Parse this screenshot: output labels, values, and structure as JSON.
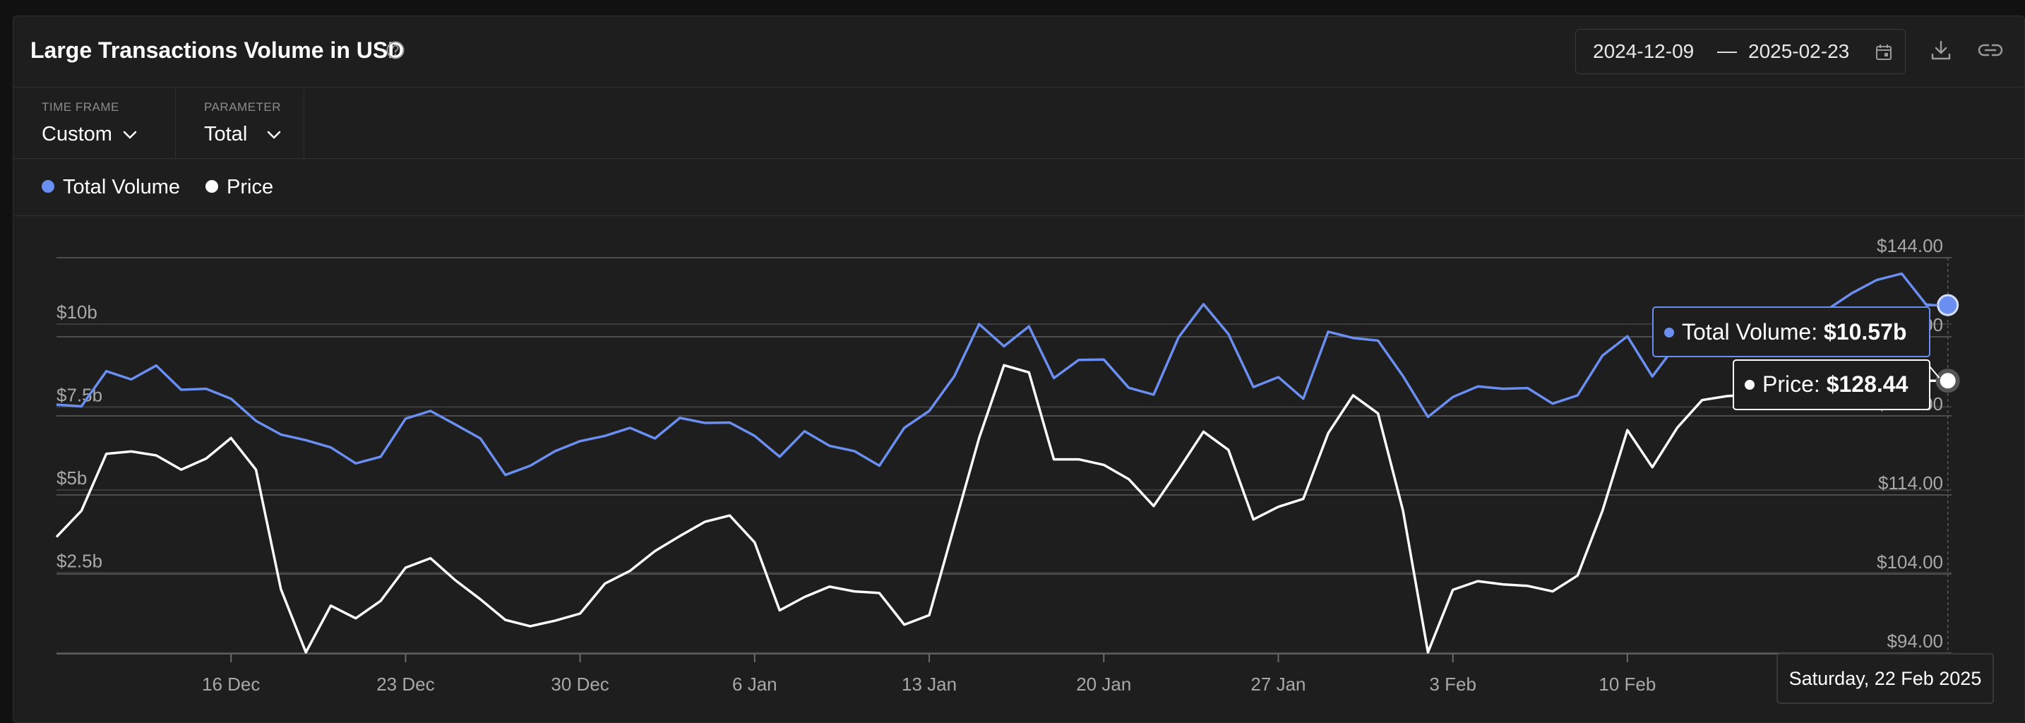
{
  "header": {
    "title": "Large Transactions Volume in USD"
  },
  "date_range": {
    "start": "2024-12-09",
    "separator": "—",
    "end": "2025-02-23"
  },
  "controls": [
    {
      "label": "TIME FRAME",
      "value": "Custom"
    },
    {
      "label": "PARAMETER",
      "value": "Total"
    }
  ],
  "colors": {
    "volume": "#6b8ff0",
    "price": "#ffffff",
    "background": "#1e1e1e",
    "grid": "#4a4a4a"
  },
  "icons": [
    "help-circle-icon",
    "calendar-icon",
    "download-icon",
    "link-icon",
    "chevron-down-icon"
  ],
  "tooltip": {
    "volume_label": "Total Volume: ",
    "volume_value": "$10.57b",
    "price_label": "Price: ",
    "price_value": "$128.44",
    "date": "Saturday, 22 Feb 2025"
  },
  "chart_data": {
    "type": "line",
    "x_start": "2024-12-09",
    "x_end": "2025-02-23",
    "x": [
      "2024-12-09",
      "2024-12-10",
      "2024-12-11",
      "2024-12-12",
      "2024-12-13",
      "2024-12-14",
      "2024-12-15",
      "2024-12-16",
      "2024-12-17",
      "2024-12-18",
      "2024-12-19",
      "2024-12-20",
      "2024-12-21",
      "2024-12-22",
      "2024-12-23",
      "2024-12-24",
      "2024-12-25",
      "2024-12-26",
      "2024-12-27",
      "2024-12-28",
      "2024-12-29",
      "2024-12-30",
      "2024-12-31",
      "2025-01-01",
      "2025-01-02",
      "2025-01-03",
      "2025-01-04",
      "2025-01-05",
      "2025-01-06",
      "2025-01-07",
      "2025-01-08",
      "2025-01-09",
      "2025-01-10",
      "2025-01-11",
      "2025-01-12",
      "2025-01-13",
      "2025-01-14",
      "2025-01-15",
      "2025-01-16",
      "2025-01-17",
      "2025-01-18",
      "2025-01-19",
      "2025-01-20",
      "2025-01-21",
      "2025-01-22",
      "2025-01-23",
      "2025-01-24",
      "2025-01-25",
      "2025-01-26",
      "2025-01-27",
      "2025-01-28",
      "2025-01-29",
      "2025-01-30",
      "2025-01-31",
      "2025-02-01",
      "2025-02-02",
      "2025-02-03",
      "2025-02-04",
      "2025-02-05",
      "2025-02-06",
      "2025-02-07",
      "2025-02-08",
      "2025-02-09",
      "2025-02-10",
      "2025-02-11",
      "2025-02-12",
      "2025-02-13",
      "2025-02-14",
      "2025-02-15",
      "2025-02-16",
      "2025-02-17",
      "2025-02-18",
      "2025-02-19",
      "2025-02-20",
      "2025-02-21",
      "2025-02-22",
      "2025-02-23"
    ],
    "x_ticks": [
      {
        "date": "2024-12-16",
        "label": "16 Dec"
      },
      {
        "date": "2024-12-23",
        "label": "23 Dec"
      },
      {
        "date": "2024-12-30",
        "label": "30 Dec"
      },
      {
        "date": "2025-01-06",
        "label": "6 Jan"
      },
      {
        "date": "2025-01-13",
        "label": "13 Jan"
      },
      {
        "date": "2025-01-20",
        "label": "20 Jan"
      },
      {
        "date": "2025-01-27",
        "label": "27 Jan"
      },
      {
        "date": "2025-02-03",
        "label": "3 Feb"
      },
      {
        "date": "2025-02-10",
        "label": "10 Feb"
      }
    ],
    "y_left": {
      "ticks": [
        2.5,
        5,
        7.5,
        10
      ],
      "labels": [
        "$2.5b",
        "$5b",
        "$7.5b",
        "$10b"
      ],
      "range": [
        0.08,
        12.0
      ]
    },
    "y_right": {
      "ticks": [
        94,
        104,
        114,
        124,
        134,
        144
      ],
      "labels": [
        "$94.00",
        "$104.00",
        "$114.00",
        "$124.00",
        "$134.00",
        "$144.00"
      ],
      "range": [
        94,
        144
      ]
    },
    "series": [
      {
        "name": "Total Volume",
        "axis": "left",
        "values": [
          7.57,
          7.52,
          8.58,
          8.33,
          8.75,
          8.02,
          8.05,
          7.75,
          7.08,
          6.67,
          6.5,
          6.28,
          5.8,
          6.0,
          7.15,
          7.38,
          6.97,
          6.55,
          5.45,
          5.73,
          6.17,
          6.47,
          6.63,
          6.87,
          6.55,
          7.17,
          7.02,
          7.03,
          6.63,
          6.0,
          6.77,
          6.33,
          6.17,
          5.73,
          6.87,
          7.38,
          8.42,
          10.0,
          9.33,
          9.93,
          8.37,
          8.92,
          8.93,
          8.08,
          7.87,
          9.6,
          10.6,
          9.7,
          8.1,
          8.4,
          7.75,
          9.77,
          9.58,
          9.5,
          8.43,
          7.2,
          7.8,
          8.12,
          8.05,
          8.07,
          7.6,
          7.85,
          9.05,
          9.63,
          8.42,
          9.42,
          9.7,
          9.6,
          9.75,
          10.2,
          10.0,
          10.43,
          10.93,
          11.33,
          11.52,
          10.57,
          10.57
        ]
      },
      {
        "name": "Price",
        "axis": "right",
        "values": [
          108.7,
          112.0,
          119.2,
          119.5,
          119.0,
          117.2,
          118.6,
          121.2,
          117.2,
          102.1,
          94.1,
          100.0,
          98.4,
          100.6,
          104.8,
          106.0,
          103.2,
          100.8,
          98.2,
          97.4,
          98.1,
          99.0,
          102.8,
          104.4,
          106.9,
          108.8,
          110.6,
          111.4,
          108.0,
          99.4,
          101.1,
          102.4,
          101.8,
          101.6,
          97.6,
          98.8,
          110.0,
          121.2,
          130.4,
          129.5,
          118.5,
          118.5,
          117.8,
          116.0,
          112.6,
          117.2,
          122.0,
          119.7,
          110.9,
          112.5,
          113.5,
          121.8,
          126.6,
          124.3,
          112.0,
          94.1,
          102.0,
          103.1,
          102.7,
          102.5,
          101.8,
          103.8,
          112.0,
          122.2,
          117.5,
          122.5,
          126.0,
          126.5,
          126.7,
          128.0,
          127.0,
          126.0,
          126.5,
          127.0,
          127.5,
          128.44,
          128.44
        ]
      }
    ]
  }
}
